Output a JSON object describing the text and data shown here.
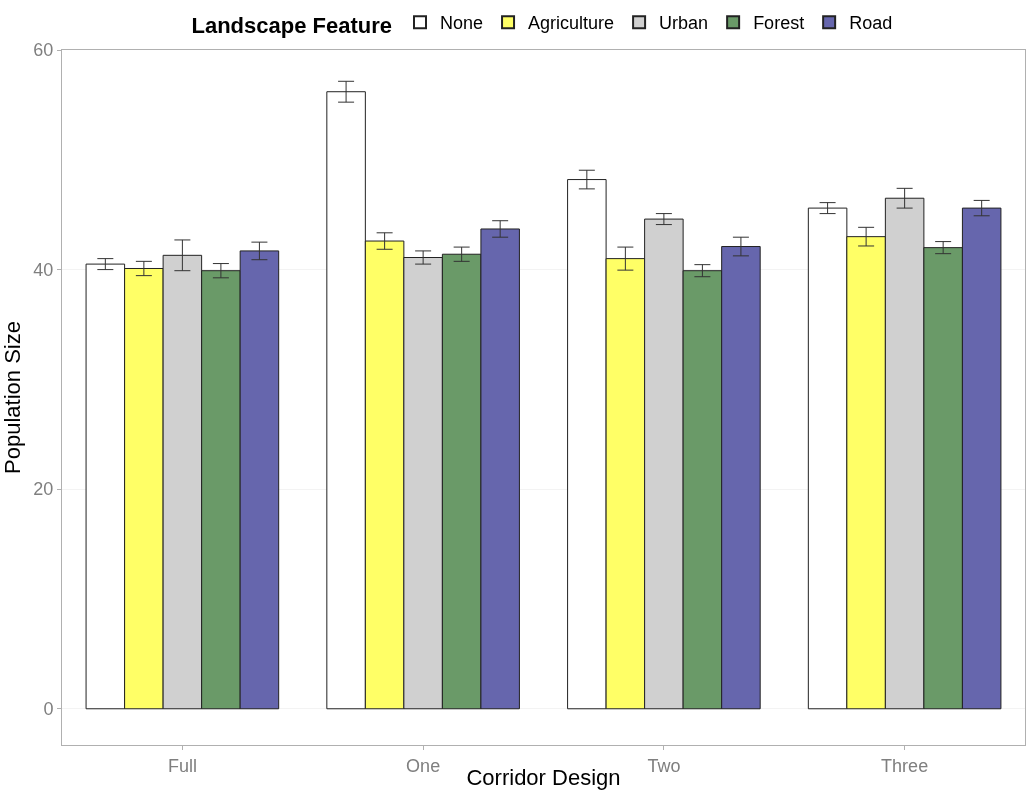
{
  "chart_data": {
    "type": "bar",
    "xlabel": "Corridor Design",
    "ylabel": "Population Size",
    "legend_title": "Landscape Feature",
    "categories": [
      "Full",
      "One",
      "Two",
      "Three"
    ],
    "series": [
      {
        "name": "None",
        "color": "#ffffff",
        "values": [
          40.5,
          56.2,
          48.2,
          45.6
        ],
        "errors": [
          0.5,
          0.95,
          0.85,
          0.5
        ]
      },
      {
        "name": "Agriculture",
        "color": "#ffff66",
        "values": [
          40.1,
          42.6,
          41.0,
          43.0
        ],
        "errors": [
          0.65,
          0.75,
          1.05,
          0.85
        ]
      },
      {
        "name": "Urban",
        "color": "#d0d0d0",
        "values": [
          41.3,
          41.1,
          44.6,
          46.5
        ],
        "errors": [
          1.4,
          0.6,
          0.5,
          0.9
        ]
      },
      {
        "name": "Forest",
        "color": "#6a9a68",
        "values": [
          39.9,
          41.4,
          39.9,
          42.0
        ],
        "errors": [
          0.65,
          0.65,
          0.55,
          0.55
        ]
      },
      {
        "name": "Road",
        "color": "#6666ad",
        "values": [
          41.7,
          43.7,
          42.1,
          45.6
        ],
        "errors": [
          0.8,
          0.75,
          0.85,
          0.7
        ]
      }
    ],
    "ylim": [
      -3.3,
      60
    ],
    "yticks": [
      0,
      20,
      40,
      60
    ],
    "grid": "y",
    "legend": "top"
  }
}
